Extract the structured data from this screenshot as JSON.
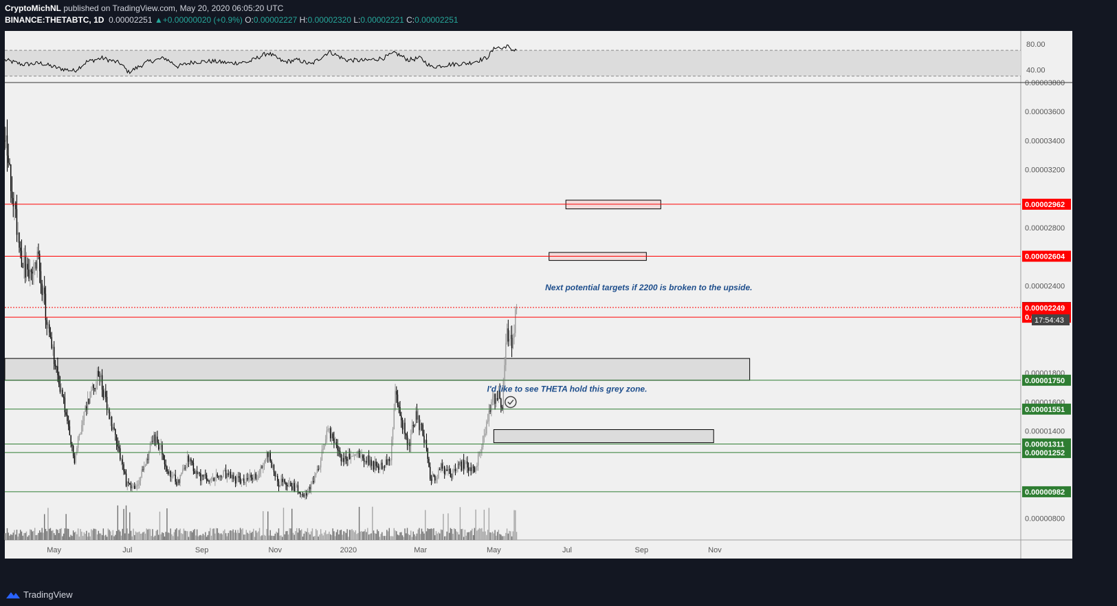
{
  "header": {
    "author": "CryptoMichNL",
    "published": "published on TradingView.com, May 20, 2020 06:05:20 UTC",
    "symbol": "BINANCE:THETABTC, 1D",
    "last": "0.00002251",
    "change": "+0.00000020 (+0.9%)",
    "o_label": "O:",
    "o_value": "0.00002227",
    "h_label": "H:",
    "h_value": "0.00002320",
    "l_label": "L:",
    "l_value": "0.00002221",
    "c_label": "C:",
    "c_value": "0.00002251"
  },
  "footer": {
    "brand": "TradingView"
  },
  "chart_data": {
    "type": "candlestick",
    "symbol": "BINANCE:THETABTC",
    "interval": "1D",
    "colors": {
      "background": "#f0f0f0",
      "up": "#9a9a9a",
      "down": "#000000",
      "resistance": "#ff0000",
      "support": "#2e7d32",
      "zone": "#dcdcdc",
      "target_zone": "#f3dcdc",
      "annotation": "#1e4e8c",
      "axis_text": "#555555"
    },
    "x_axis": {
      "ticks": [
        "May",
        "Jul",
        "Sep",
        "Nov",
        "2020",
        "Mar",
        "May",
        "Jul",
        "Sep",
        "Nov"
      ],
      "tick_dates": [
        "2019-05-01",
        "2019-07-01",
        "2019-09-01",
        "2019-11-01",
        "2020-01-01",
        "2020-03-01",
        "2020-05-01",
        "2020-07-01",
        "2020-09-01",
        "2020-11-01"
      ],
      "range": [
        "2019-03-21",
        "2020-11-30"
      ]
    },
    "y_axis": {
      "scale": "linear",
      "range": [
        6.5e-06,
        3.8e-05
      ],
      "ticks": [
        "0.00003800",
        "0.00003600",
        "0.00003400",
        "0.00003200",
        "0.00002800",
        "0.00002400",
        "0.00001800",
        "0.00001600",
        "0.00001400",
        "0.00000800"
      ],
      "tick_values": [
        3.8e-05,
        3.6e-05,
        3.4e-05,
        3.2e-05,
        2.8e-05,
        2.4e-05,
        1.8e-05,
        1.6e-05,
        1.4e-05,
        8e-06
      ]
    },
    "series": [
      {
        "name": "THETABTC",
        "anchors": [
          [
            "2019-03-21",
            3.4e-05
          ],
          [
            "2019-03-28",
            3e-05
          ],
          [
            "2019-04-05",
            2.55e-05
          ],
          [
            "2019-04-12",
            2.45e-05
          ],
          [
            "2019-04-18",
            2.6e-05
          ],
          [
            "2019-04-25",
            2.15e-05
          ],
          [
            "2019-05-03",
            1.8e-05
          ],
          [
            "2019-05-08",
            1.65e-05
          ],
          [
            "2019-05-14",
            1.35e-05
          ],
          [
            "2019-05-18",
            1.2e-05
          ],
          [
            "2019-05-25",
            1.5e-05
          ],
          [
            "2019-06-02",
            1.7e-05
          ],
          [
            "2019-06-08",
            1.8e-05
          ],
          [
            "2019-06-14",
            1.55e-05
          ],
          [
            "2019-06-22",
            1.35e-05
          ],
          [
            "2019-06-30",
            1.05e-05
          ],
          [
            "2019-07-08",
            1e-05
          ],
          [
            "2019-07-15",
            1.15e-05
          ],
          [
            "2019-07-22",
            1.35e-05
          ],
          [
            "2019-07-28",
            1.3e-05
          ],
          [
            "2019-08-04",
            1.1e-05
          ],
          [
            "2019-08-12",
            1.05e-05
          ],
          [
            "2019-08-20",
            1.2e-05
          ],
          [
            "2019-08-28",
            1.1e-05
          ],
          [
            "2019-09-08",
            1.05e-05
          ],
          [
            "2019-09-20",
            1.1e-05
          ],
          [
            "2019-10-05",
            1.05e-05
          ],
          [
            "2019-10-18",
            1.1e-05
          ],
          [
            "2019-10-26",
            1.25e-05
          ],
          [
            "2019-11-03",
            1.05e-05
          ],
          [
            "2019-11-15",
            1.02e-05
          ],
          [
            "2019-11-28",
            9.7e-06
          ],
          [
            "2019-12-08",
            1.15e-05
          ],
          [
            "2019-12-15",
            1.45e-05
          ],
          [
            "2019-12-20",
            1.3e-05
          ],
          [
            "2019-12-28",
            1.2e-05
          ],
          [
            "2020-01-10",
            1.25e-05
          ],
          [
            "2020-01-25",
            1.15e-05
          ],
          [
            "2020-02-05",
            1.2e-05
          ],
          [
            "2020-02-09",
            1.65e-05
          ],
          [
            "2020-02-15",
            1.45e-05
          ],
          [
            "2020-02-20",
            1.3e-05
          ],
          [
            "2020-02-26",
            1.5e-05
          ],
          [
            "2020-03-03",
            1.4e-05
          ],
          [
            "2020-03-09",
            1.1e-05
          ],
          [
            "2020-03-13",
            1.05e-05
          ],
          [
            "2020-03-18",
            1.15e-05
          ],
          [
            "2020-03-25",
            1.1e-05
          ],
          [
            "2020-04-05",
            1.17e-05
          ],
          [
            "2020-04-15",
            1.13e-05
          ],
          [
            "2020-04-24",
            1.4e-05
          ],
          [
            "2020-04-30",
            1.6e-05
          ],
          [
            "2020-05-04",
            1.65e-05
          ],
          [
            "2020-05-08",
            1.58e-05
          ],
          [
            "2020-05-12",
            2.1e-05
          ],
          [
            "2020-05-16",
            2e-05
          ],
          [
            "2020-05-20",
            2.25e-05
          ]
        ]
      }
    ],
    "volume": {
      "name": "Volume",
      "visible": true
    },
    "rsi": {
      "name": "RSI",
      "ticks": [
        "80.00",
        "40.00"
      ],
      "tick_values": [
        80,
        40
      ],
      "range": [
        20,
        100
      ],
      "band": [
        30,
        70
      ],
      "anchors": [
        [
          "2019-03-21",
          55
        ],
        [
          "2019-04-05",
          48
        ],
        [
          "2019-04-20",
          50
        ],
        [
          "2019-05-05",
          42
        ],
        [
          "2019-05-18",
          38
        ],
        [
          "2019-05-28",
          52
        ],
        [
          "2019-06-10",
          58
        ],
        [
          "2019-06-25",
          50
        ],
        [
          "2019-07-02",
          36
        ],
        [
          "2019-07-18",
          52
        ],
        [
          "2019-08-01",
          58
        ],
        [
          "2019-08-12",
          45
        ],
        [
          "2019-08-25",
          52
        ],
        [
          "2019-09-10",
          53
        ],
        [
          "2019-09-25",
          50
        ],
        [
          "2019-10-10",
          52
        ],
        [
          "2019-10-26",
          66
        ],
        [
          "2019-11-08",
          52
        ],
        [
          "2019-11-20",
          55
        ],
        [
          "2019-12-01",
          48
        ],
        [
          "2019-12-16",
          68
        ],
        [
          "2019-12-30",
          55
        ],
        [
          "2020-01-15",
          54
        ],
        [
          "2020-01-30",
          58
        ],
        [
          "2020-02-09",
          66
        ],
        [
          "2020-02-20",
          55
        ],
        [
          "2020-03-01",
          58
        ],
        [
          "2020-03-10",
          44
        ],
        [
          "2020-03-25",
          48
        ],
        [
          "2020-04-10",
          50
        ],
        [
          "2020-04-25",
          58
        ],
        [
          "2020-05-03",
          76
        ],
        [
          "2020-05-08",
          72
        ],
        [
          "2020-05-12",
          78
        ],
        [
          "2020-05-15",
          70
        ],
        [
          "2020-05-20",
          72
        ]
      ]
    },
    "levels": [
      {
        "value": 2.962e-05,
        "label": "0.00002962",
        "kind": "resistance"
      },
      {
        "value": 2.604e-05,
        "label": "0.00002604",
        "kind": "resistance"
      },
      {
        "value": 2.184e-05,
        "label": "0.00002184",
        "kind": "resistance"
      },
      {
        "value": 1.75e-05,
        "label": "0.00001750",
        "kind": "support"
      },
      {
        "value": 1.551e-05,
        "label": "0.00001551",
        "kind": "support"
      },
      {
        "value": 1.311e-05,
        "label": "0.00001311",
        "kind": "support"
      },
      {
        "value": 1.252e-05,
        "label": "0.00001252",
        "kind": "support"
      },
      {
        "value": 9.82e-06,
        "label": "0.00000982",
        "kind": "support"
      }
    ],
    "last_price": {
      "value": 2.251e-05,
      "label": "0.00002251",
      "countdown": "17:54:43"
    },
    "marker_price": {
      "value": 2.249e-05,
      "label": "0.00002249"
    },
    "zones": [
      {
        "name": "grey-support-zone",
        "from": "2019-03-21",
        "to": "2020-11-30",
        "low": 1.75e-05,
        "high": 1.9e-05
      },
      {
        "name": "retest-zone",
        "from": "2020-05-01",
        "to": "2020-10-31",
        "low": 1.32e-05,
        "high": 1.41e-05
      },
      {
        "name": "target-zone-1",
        "from": "2020-06-16",
        "to": "2020-09-05",
        "low": 2.575e-05,
        "high": 2.63e-05
      },
      {
        "name": "target-zone-2",
        "from": "2020-06-30",
        "to": "2020-09-17",
        "low": 2.93e-05,
        "high": 2.99e-05
      }
    ],
    "annotations": [
      {
        "text": "Next potential targets if 2200 is broken to the upside.",
        "date": "2020-09-07",
        "value": 2.37e-05
      },
      {
        "text": "I'd like to see THETA hold this grey zone.",
        "date": "2020-07-01",
        "value": 1.67e-05
      }
    ]
  }
}
